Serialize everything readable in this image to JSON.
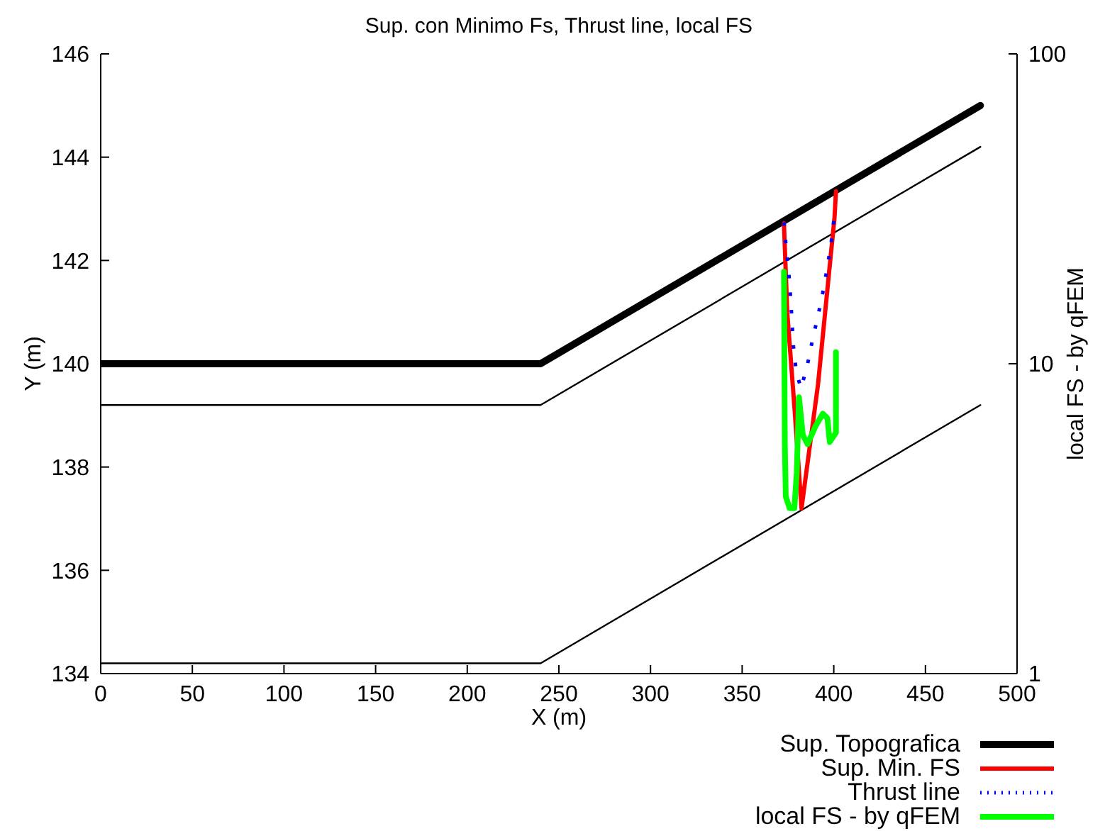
{
  "chart_data": {
    "type": "line",
    "title": "Sup. con Minimo Fs, Thrust line, local FS",
    "xlabel": "X (m)",
    "ylabel": "Y (m)",
    "y2label": "local FS - by qFEM",
    "xlim": [
      0,
      500
    ],
    "xticks": [
      0,
      50,
      100,
      150,
      200,
      250,
      300,
      350,
      400,
      450,
      500
    ],
    "ylim": [
      134,
      146
    ],
    "yticks": [
      134,
      136,
      138,
      140,
      142,
      144,
      146
    ],
    "y2lim": [
      1,
      100
    ],
    "y2ticks": [
      1,
      10,
      100
    ],
    "log": "y2",
    "legend": "bottom right",
    "series": [
      {
        "name": "Sup. Topografica",
        "color": "#000000",
        "line_style": "solid",
        "x": [
          0,
          240,
          480
        ],
        "values": [
          140,
          140,
          145
        ]
      },
      {
        "color": "#000000",
        "line_style": "solid",
        "x": [
          0,
          240,
          480
        ],
        "values": [
          139.2,
          139.2,
          144.2
        ]
      },
      {
        "color": "#000000",
        "line_style": "solid",
        "x": [
          0,
          240,
          480
        ],
        "values": [
          134.2,
          134.2,
          139.2
        ]
      },
      {
        "name": "Sup. Min. FS",
        "color": "#ff0000",
        "line_style": "solid",
        "x": [
          372.8,
          374.6,
          378.5,
          382.4,
          391.4,
          397.8,
          400.4,
          401.2
        ],
        "values": [
          142.72,
          141.0,
          139.17,
          137.2,
          139.6,
          141.9,
          142.83,
          143.34
        ]
      },
      {
        "name": "Thrust line",
        "color": "#0000ff",
        "line_style": "dotted",
        "x": [
          372.8,
          374.0,
          375.4,
          376.4,
          377.2,
          378.0,
          379.5,
          382.1,
          385.7,
          388.3,
          391.4,
          394.0,
          396.5,
          398.6,
          400.2
        ],
        "values": [
          142.74,
          142.26,
          141.78,
          141.29,
          140.82,
          140.34,
          139.85,
          139.52,
          139.99,
          140.45,
          140.93,
          141.38,
          141.87,
          142.35,
          142.83
        ]
      },
      {
        "name": "local FS - by qFEM",
        "color": "#00ff00",
        "line_style": "solid",
        "axis": "y2",
        "x": [
          372.8,
          373.3,
          373.8,
          375.9,
          378.5,
          379.8,
          381.0,
          383.1,
          385.7,
          390.1,
          394.0,
          396.5,
          397.8,
          401.2,
          401.2
        ],
        "values": [
          19.8,
          5.5,
          3.73,
          3.42,
          3.42,
          4.45,
          7.8,
          5.89,
          5.5,
          6.3,
          6.9,
          6.67,
          5.59,
          6.0,
          10.9
        ]
      }
    ]
  }
}
